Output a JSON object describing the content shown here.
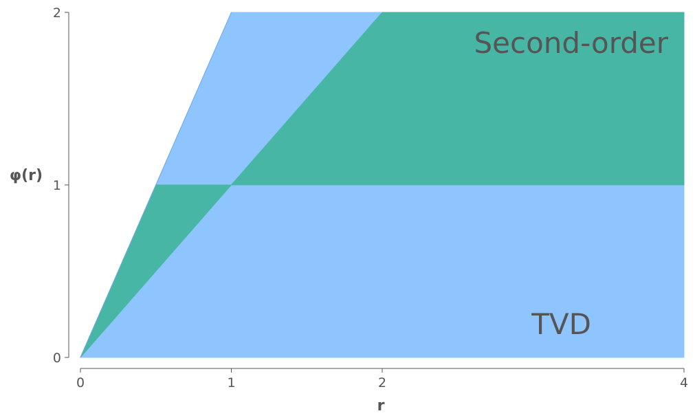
{
  "chart_data": {
    "type": "area",
    "title": "",
    "xlabel": "r",
    "ylabel": "φ(r)",
    "xlim": [
      0,
      4
    ],
    "ylim": [
      0,
      2
    ],
    "x_ticks": [
      {
        "value": 0,
        "label": "0"
      },
      {
        "value": 1,
        "label": "1"
      },
      {
        "value": 2,
        "label": "2"
      },
      {
        "value": 4,
        "label": "4"
      }
    ],
    "y_ticks": [
      {
        "value": 0,
        "label": "0"
      },
      {
        "value": 1,
        "label": "1"
      },
      {
        "value": 2,
        "label": "2"
      }
    ],
    "grid": false,
    "regions": [
      {
        "label": "TVD",
        "color": "#8fc5ff",
        "boundary": [
          [
            0,
            0
          ],
          [
            1,
            2
          ],
          [
            4,
            2
          ],
          [
            4,
            0
          ]
        ]
      },
      {
        "label": "Second-order",
        "color": "#48b6a5",
        "boundary": [
          [
            0,
            0
          ],
          [
            0.5,
            1
          ],
          [
            1,
            1
          ],
          [
            2,
            2
          ],
          [
            4,
            2
          ],
          [
            4,
            1
          ],
          [
            1,
            1
          ],
          [
            0,
            0
          ]
        ]
      }
    ],
    "annotations": [
      {
        "text": "Second-order",
        "x": 3.3,
        "y": 1.8
      },
      {
        "text": "TVD",
        "x": 3.3,
        "y": 0.15
      }
    ]
  }
}
